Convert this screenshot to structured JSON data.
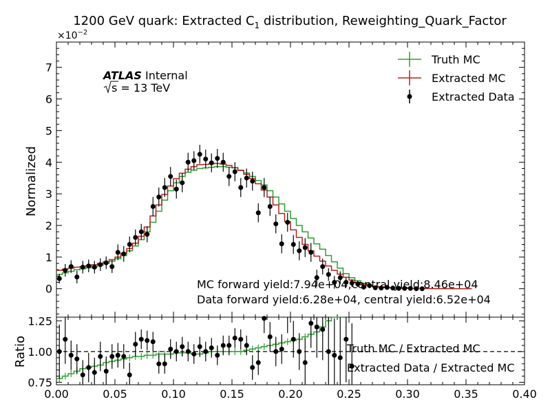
{
  "chart_data": {
    "type": "line",
    "title": "1200 GeV quark: Extracted C",
    "title_sub": "1",
    "title_suffix": " distribution, Reweighting_Quark_Factor",
    "y_scale_prefix": "×10",
    "y_scale_exp": "−2",
    "atlas_label": "ATLAS",
    "internal_label": "Internal",
    "energy_label": "s = 13 TeV",
    "mc_yield_text": "MC forward yield:7.94e+04,central yield:8.46e+04",
    "data_yield_text": "Data forward yield:6.28e+04, central yield:6.52e+04",
    "ylabel": "Normalized",
    "ratio_ylabel": "Ratio",
    "xlim": [
      0,
      0.4
    ],
    "ylim": [
      -0.9,
      7.8
    ],
    "ratio_ylim": [
      0.73,
      1.28
    ],
    "x_ticks": [
      "0.00",
      "0.05",
      "0.10",
      "0.15",
      "0.20",
      "0.25",
      "0.30",
      "0.35",
      "0.40"
    ],
    "y_ticks": [
      "0",
      "1",
      "2",
      "3",
      "4",
      "5",
      "6",
      "7"
    ],
    "ratio_ticks": [
      "0.75",
      "1.00",
      "1.25"
    ],
    "legend_placement": "top-right",
    "legend": [
      {
        "name": "Truth MC",
        "color": "#2ca02c",
        "style": "step"
      },
      {
        "name": "Extracted MC",
        "color": "#b22222",
        "style": "step"
      },
      {
        "name": "Extracted Data",
        "color": "#000000",
        "style": "points"
      }
    ],
    "ratio_legend": [
      {
        "name": "Truth MC / Extracted MC"
      },
      {
        "name": "Extracted Data / Extracted MC"
      }
    ],
    "bin_width": 0.005,
    "series": [
      {
        "name": "Truth MC",
        "color": "#2ca02c",
        "values": [
          0.45,
          0.5,
          0.55,
          0.6,
          0.63,
          0.66,
          0.7,
          0.74,
          0.8,
          0.87,
          0.95,
          1.05,
          1.2,
          1.35,
          1.55,
          1.8,
          2.1,
          2.45,
          2.8,
          3.1,
          3.35,
          3.55,
          3.68,
          3.75,
          3.8,
          3.82,
          3.84,
          3.86,
          3.86,
          3.84,
          3.82,
          3.75,
          3.66,
          3.55,
          3.42,
          3.28,
          3.1,
          2.9,
          2.68,
          2.45,
          2.22,
          2.0,
          1.8,
          1.6,
          1.42,
          1.25,
          1.05,
          0.85,
          0.65,
          0.48,
          0.35,
          0.25,
          0.17,
          0.11,
          0.07,
          0.045,
          0.03,
          0.02,
          0.015,
          0.01,
          0.008,
          0.006,
          0.005,
          0.004,
          0.003,
          0.002,
          0.001,
          0.001,
          0.001,
          0.0,
          0.0
        ]
      },
      {
        "name": "Extracted MC",
        "color": "#b22222",
        "values": [
          0.58,
          0.62,
          0.65,
          0.68,
          0.7,
          0.73,
          0.76,
          0.8,
          0.85,
          0.92,
          1.0,
          1.12,
          1.27,
          1.44,
          1.66,
          1.95,
          2.3,
          2.65,
          2.98,
          3.25,
          3.48,
          3.65,
          3.78,
          3.86,
          3.92,
          3.93,
          3.95,
          3.96,
          3.94,
          3.9,
          3.83,
          3.74,
          3.62,
          3.48,
          3.32,
          3.12,
          2.9,
          2.65,
          2.38,
          2.12,
          1.86,
          1.62,
          1.4,
          1.2,
          1.03,
          0.87,
          0.72,
          0.58,
          0.46,
          0.36,
          0.27,
          0.2,
          0.15,
          0.11,
          0.08,
          0.06,
          0.04,
          0.03,
          0.02,
          0.015,
          0.01,
          0.008,
          0.006,
          0.005,
          0.004,
          0.003,
          0.002,
          0.002,
          0.001,
          0.001,
          0.001
        ]
      },
      {
        "name": "Extracted Data",
        "color": "#000000",
        "values": [
          0.32,
          0.58,
          0.7,
          0.37,
          0.68,
          0.72,
          0.68,
          0.76,
          0.82,
          0.7,
          1.15,
          1.1,
          1.4,
          1.62,
          1.8,
          1.72,
          2.6,
          2.9,
          3.2,
          3.55,
          3.15,
          3.35,
          4.0,
          4.05,
          4.25,
          4.1,
          3.98,
          4.12,
          4.0,
          3.55,
          3.7,
          3.2,
          3.5,
          3.4,
          2.4,
          3.2,
          2.6,
          2.05,
          1.42,
          2.1,
          1.4,
          1.2,
          1.3,
          1.15,
          0.35,
          0.7,
          0.45,
          0.2,
          0.35,
          0.2,
          0.18,
          0.15,
          0.05,
          0.1,
          0.03,
          0.02,
          0.04,
          0.02,
          0.01,
          0.01,
          0.01,
          0.0,
          0.0
        ],
        "errors": [
          0.15,
          0.2,
          0.2,
          0.2,
          0.2,
          0.2,
          0.2,
          0.2,
          0.2,
          0.2,
          0.25,
          0.25,
          0.25,
          0.25,
          0.25,
          0.25,
          0.3,
          0.3,
          0.3,
          0.3,
          0.3,
          0.3,
          0.3,
          0.3,
          0.3,
          0.3,
          0.3,
          0.3,
          0.3,
          0.3,
          0.3,
          0.3,
          0.3,
          0.3,
          0.3,
          0.3,
          0.3,
          0.3,
          0.3,
          0.3,
          0.3,
          0.3,
          0.3,
          0.3,
          0.25,
          0.25,
          0.2,
          0.2,
          0.2,
          0.15,
          0.12,
          0.1,
          0.08,
          0.06,
          0.05,
          0.04,
          0.04,
          0.03,
          0.02,
          0.02,
          0.02,
          0.01,
          0.01
        ]
      }
    ],
    "ratio_series": [
      {
        "name": "Truth MC / Extracted MC",
        "color": "#2ca02c",
        "values": [
          0.78,
          0.8,
          0.82,
          0.84,
          0.86,
          0.87,
          0.88,
          0.89,
          0.91,
          0.92,
          0.93,
          0.94,
          0.95,
          0.96,
          0.96,
          0.97,
          0.97,
          0.98,
          0.98,
          0.98,
          0.99,
          0.99,
          0.99,
          0.98,
          0.98,
          0.99,
          1.0,
          1.0,
          1.0,
          1.0,
          1.0,
          1.0,
          1.01,
          1.02,
          1.03,
          1.04,
          1.05,
          1.06,
          1.07,
          1.08,
          1.09,
          1.1,
          1.12,
          1.14,
          1.16,
          1.2,
          1.25,
          1.3,
          1.35
        ]
      },
      {
        "name": "Extracted Data / Extracted MC",
        "color": "#000000",
        "values": [
          1.0,
          1.1,
          0.97,
          0.94,
          0.81,
          0.87,
          0.83,
          0.96,
          0.84,
          0.96,
          0.97,
          0.96,
          0.81,
          1.06,
          1.1,
          1.09,
          1.08,
          0.9,
          0.9,
          1.02,
          1.0,
          1.04,
          1.0,
          0.98,
          1.04,
          1.0,
          1.03,
          0.97,
          1.05,
          1.05,
          1.11,
          1.1,
          1.05,
          0.87,
          0.91,
          1.27,
          1.12,
          1.0,
          1.02,
          1.3,
          1.1,
          1.0,
          0.91,
          1.23,
          1.2,
          1.18,
          1.0,
          0.97,
          0.95,
          1.1,
          0.88
        ],
        "errors": [
          0.22,
          0.2,
          0.12,
          0.12,
          0.12,
          0.12,
          0.12,
          0.12,
          0.12,
          0.1,
          0.1,
          0.1,
          0.1,
          0.1,
          0.08,
          0.08,
          0.08,
          0.08,
          0.08,
          0.08,
          0.08,
          0.08,
          0.08,
          0.08,
          0.08,
          0.08,
          0.08,
          0.08,
          0.08,
          0.08,
          0.08,
          0.08,
          0.08,
          0.1,
          0.1,
          0.12,
          0.12,
          0.12,
          0.12,
          0.15,
          0.15,
          0.15,
          0.2,
          0.2,
          0.25,
          0.25,
          0.3,
          0.3,
          0.35,
          0.35,
          0.35
        ]
      }
    ]
  }
}
